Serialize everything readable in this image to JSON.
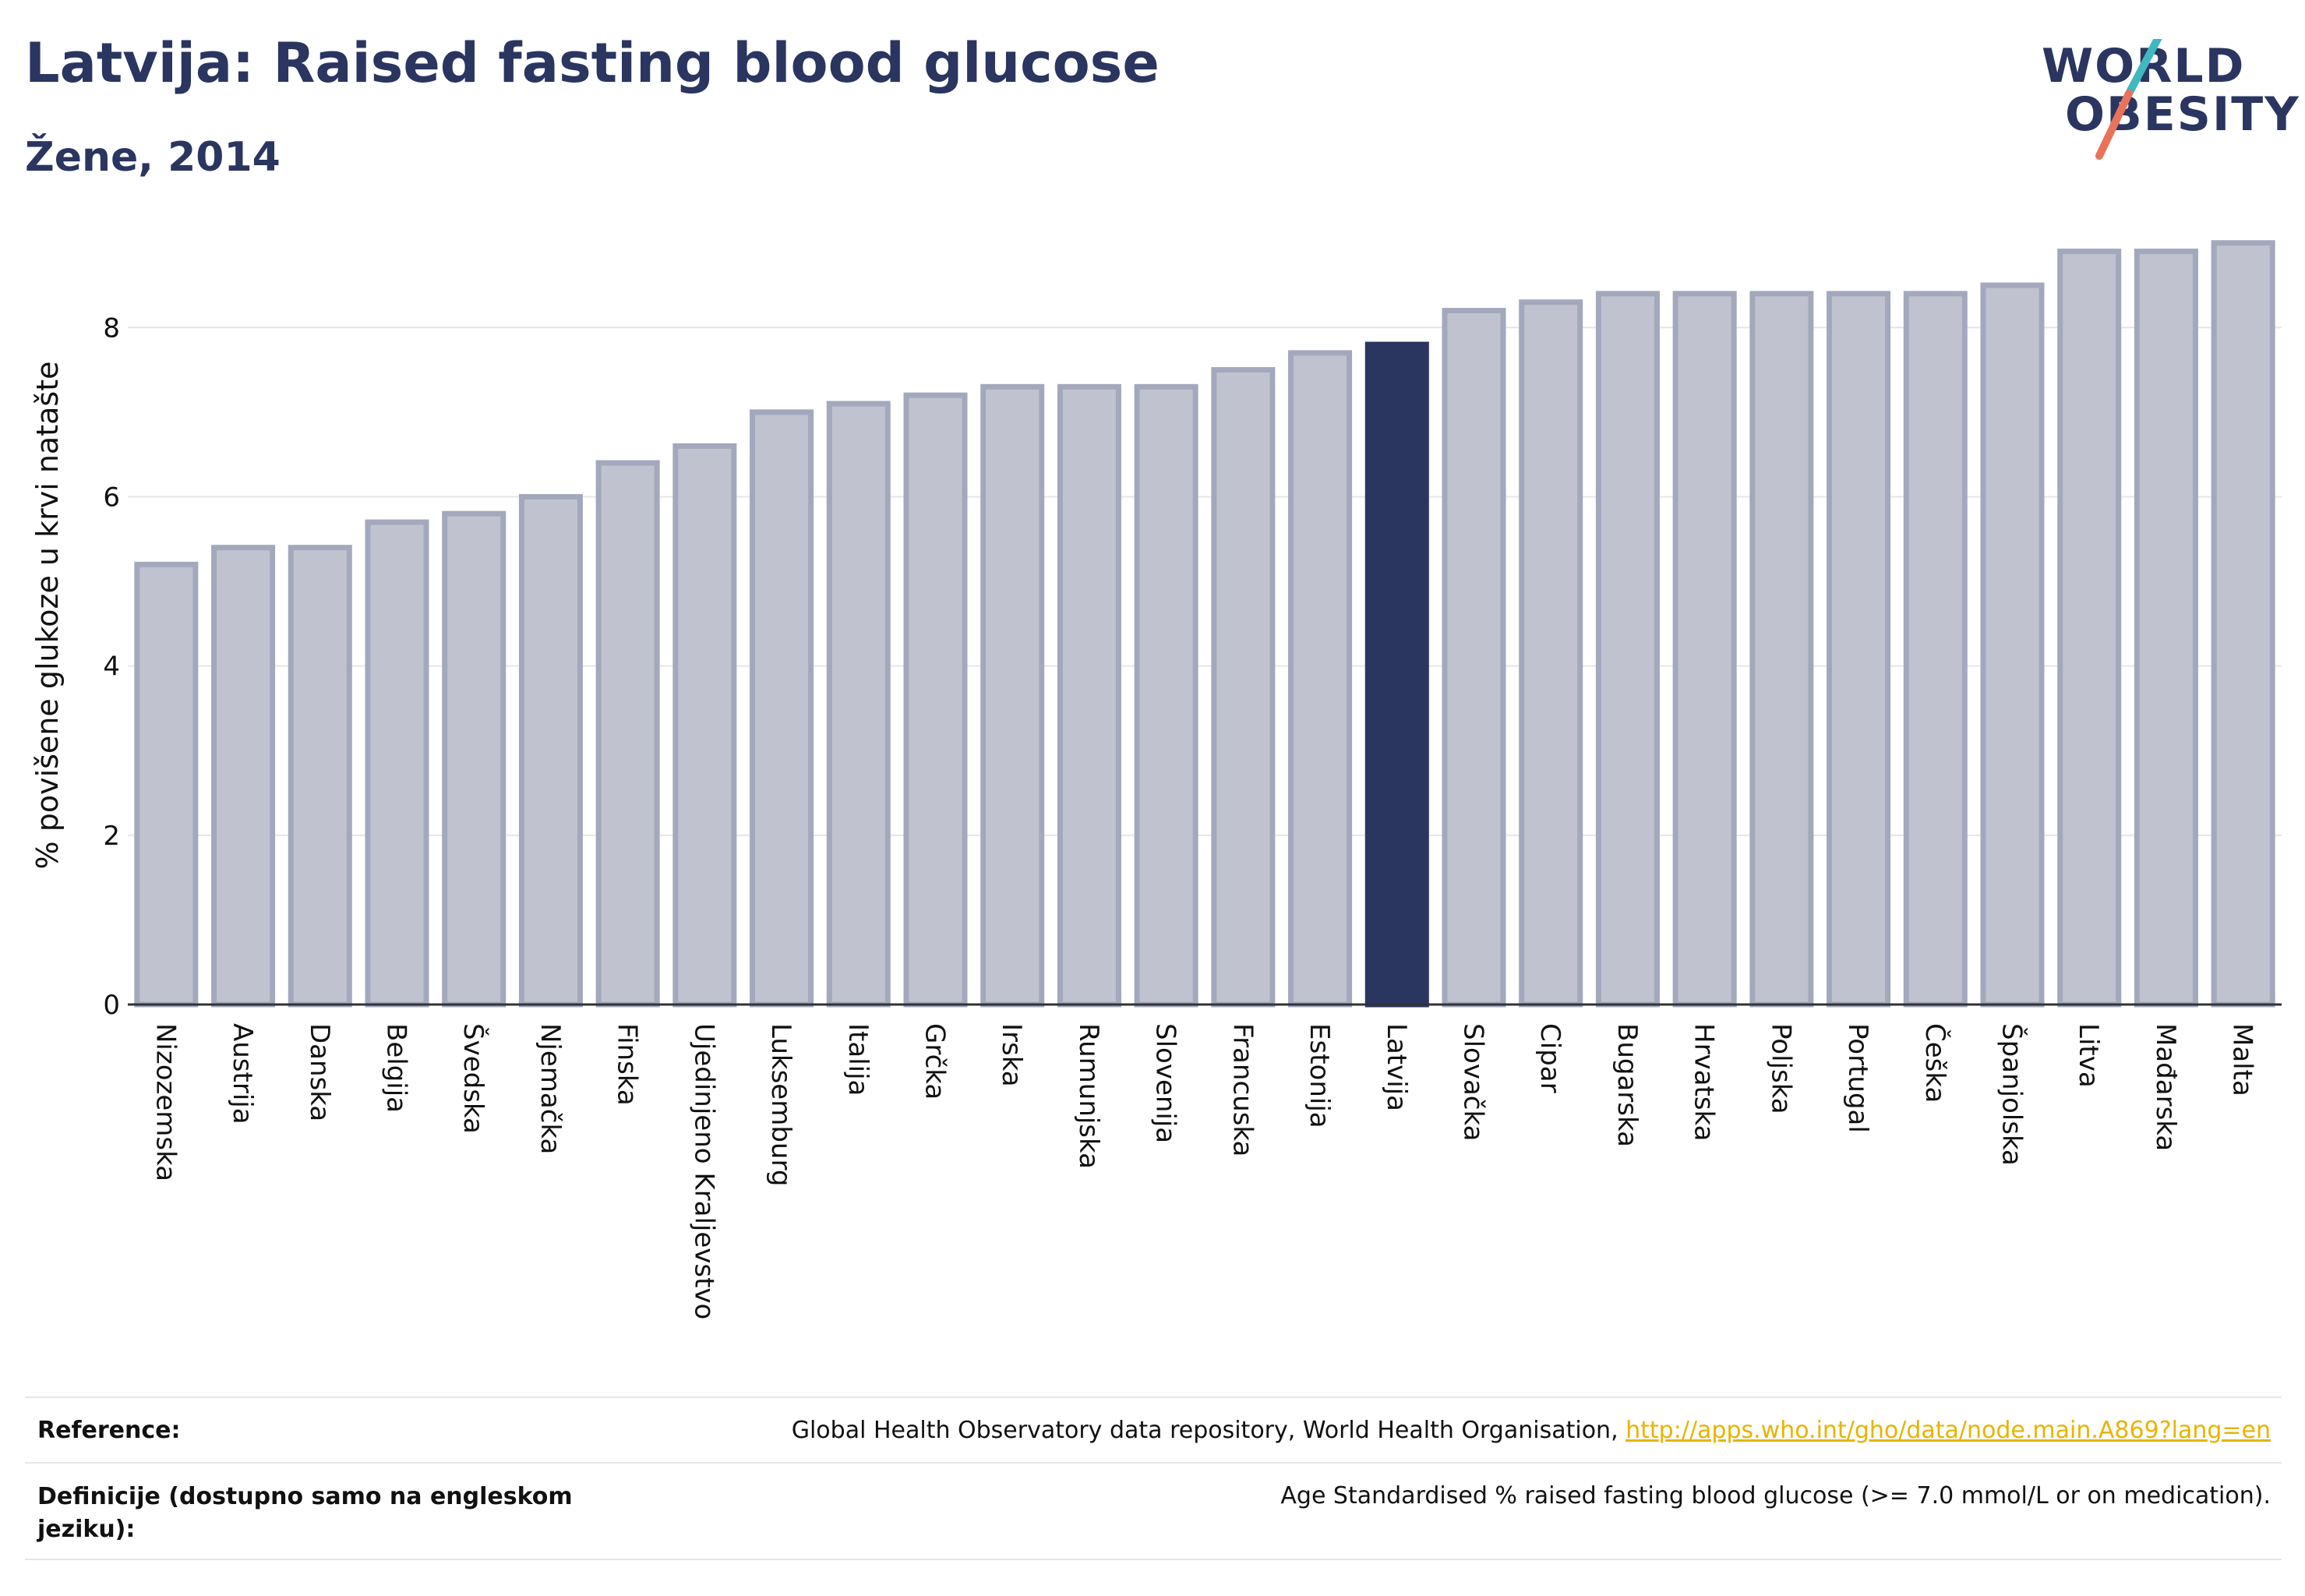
{
  "header": {
    "title": "Latvija: Raised fasting blood glucose",
    "subtitle": "Žene, 2014"
  },
  "logo": {
    "line1": "WORLD",
    "line2": "OBESITY",
    "colors": {
      "text": "#2a3560",
      "slash_top": "#3fb8c0",
      "slash_bottom": "#e8735a"
    }
  },
  "chart_data": {
    "type": "bar",
    "ylabel": "% povišene glukoze u krvi natašte",
    "ylim": [
      0,
      9.2
    ],
    "yticks": [
      0,
      2,
      4,
      6,
      8
    ],
    "grid": true,
    "highlight": "Latvija",
    "colors": {
      "bar": "#c0c3cf",
      "bar_edge": "#a3a8bc",
      "highlight": "#2a3560"
    },
    "categories": [
      "Nizozemska",
      "Austrija",
      "Danska",
      "Belgija",
      "Švedska",
      "Njemačka",
      "Finska",
      "Ujedinjeno Kraljevstvo",
      "Luksemburg",
      "Italija",
      "Grčka",
      "Irska",
      "Rumunjska",
      "Slovenija",
      "Francuska",
      "Estonija",
      "Latvija",
      "Slovačka",
      "Cipar",
      "Bugarska",
      "Hrvatska",
      "Poljska",
      "Portugal",
      "Češka",
      "Španjolska",
      "Litva",
      "Mađarska",
      "Malta"
    ],
    "values": [
      5.2,
      5.4,
      5.4,
      5.7,
      5.8,
      6.0,
      6.4,
      6.6,
      7.0,
      7.1,
      7.2,
      7.3,
      7.3,
      7.3,
      7.5,
      7.7,
      7.8,
      8.2,
      8.3,
      8.4,
      8.4,
      8.4,
      8.4,
      8.4,
      8.5,
      8.9,
      8.9,
      9.0
    ]
  },
  "footer": {
    "reference_label": "Reference:",
    "reference_text": "Global Health Observatory data repository, World Health Organisation, ",
    "reference_link": "http://apps.who.int/gho/data/node.main.A869?lang=en",
    "definition_label": "Definicije (dostupno samo na engleskom jeziku):",
    "definition_text": "Age Standardised % raised fasting blood glucose (>= 7.0 mmol/L or on medication)."
  }
}
